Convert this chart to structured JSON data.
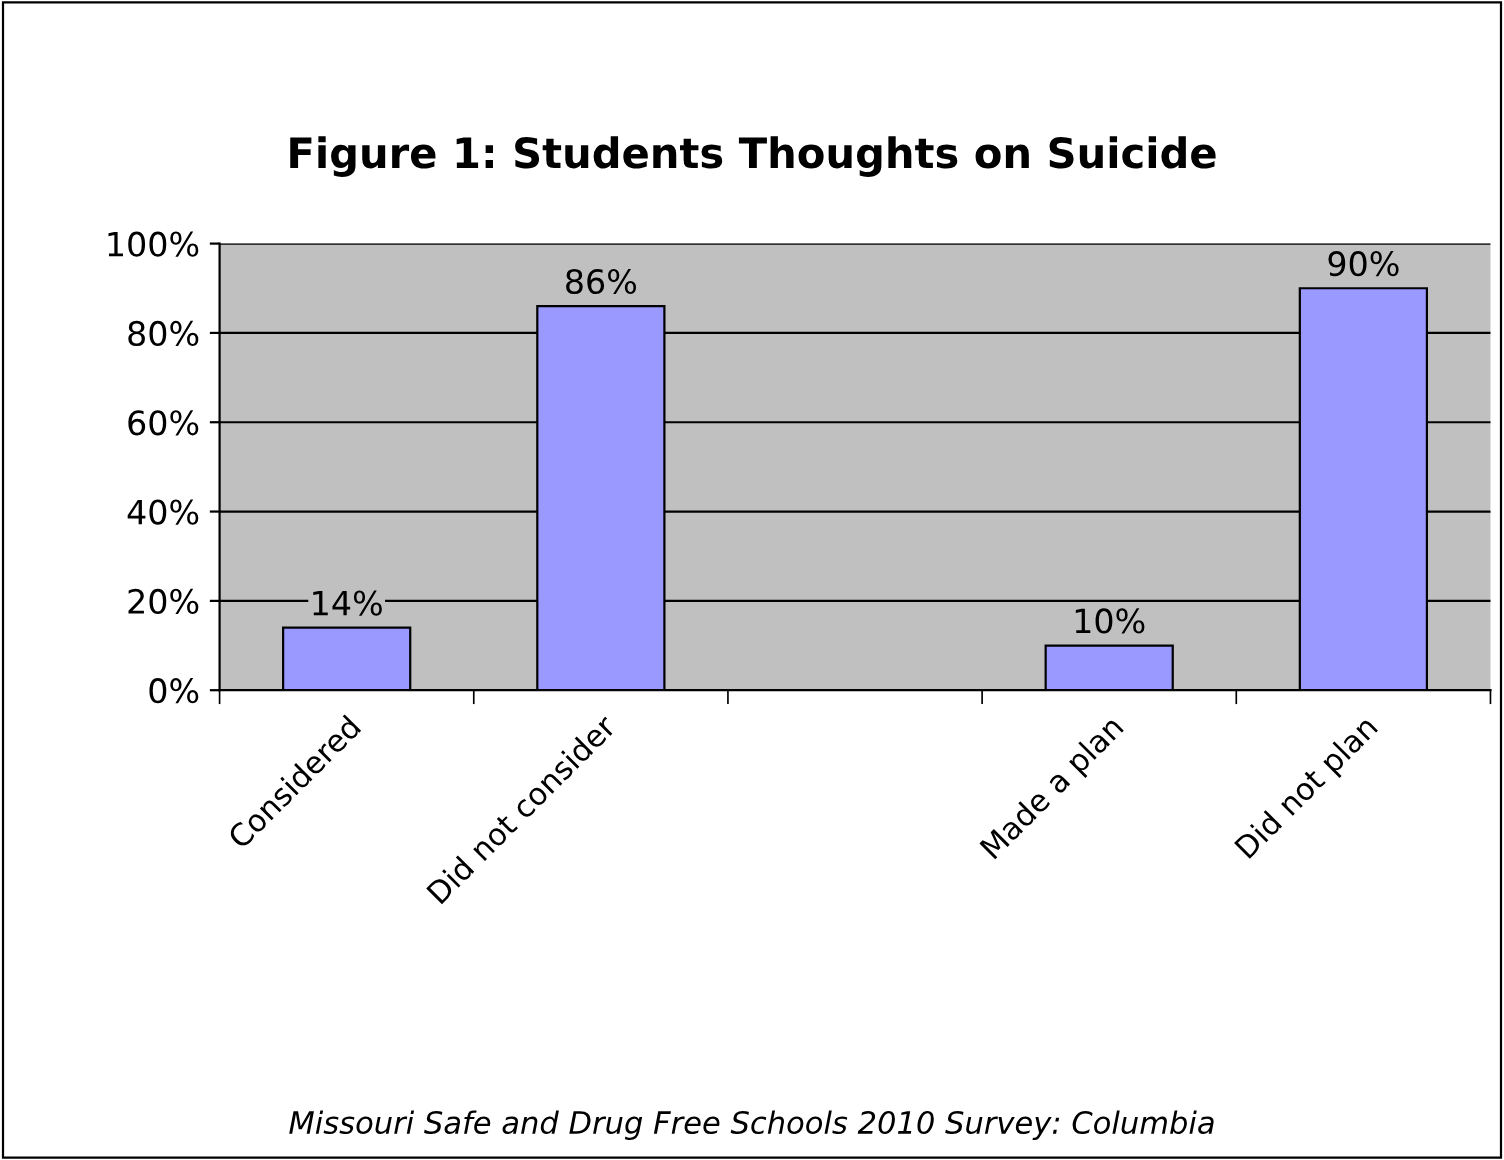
{
  "chart_data": {
    "type": "bar",
    "title": "Figure 1: Students Thoughts on Suicide",
    "categories": [
      "Considered",
      "Did not consider",
      null,
      "Made a plan",
      "Did not plan"
    ],
    "values": [
      14,
      86,
      null,
      10,
      90
    ],
    "value_labels": [
      "14%",
      "86%",
      null,
      "10%",
      "90%"
    ],
    "color": "#9999ff",
    "ylim": [
      0,
      100
    ],
    "yticks": [
      {
        "value": 0,
        "label": "0%"
      },
      {
        "value": 20,
        "label": "20%"
      },
      {
        "value": 40,
        "label": "40%"
      },
      {
        "value": 60,
        "label": "60%"
      },
      {
        "value": 80,
        "label": "80%"
      },
      {
        "value": 100,
        "label": "100%"
      }
    ],
    "grid": "y",
    "legend": false,
    "annotations": [
      "Missouri Safe and Drug Free Schools 2010 Survey: Columbia"
    ]
  }
}
